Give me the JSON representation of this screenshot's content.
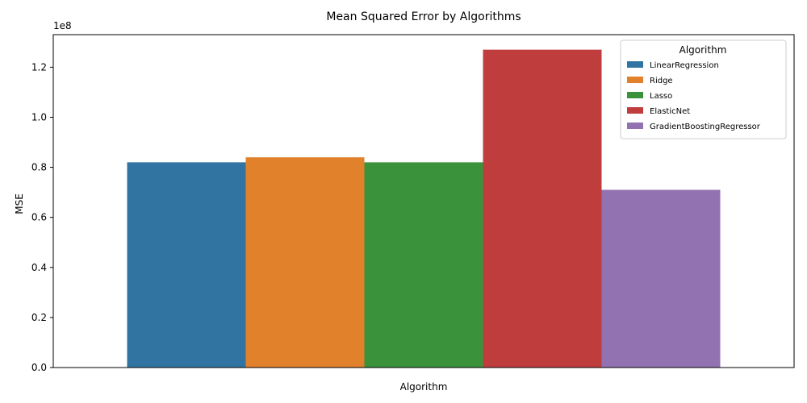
{
  "chart_data": {
    "type": "bar",
    "title": "Mean Squared Error by Algorithms",
    "xlabel": "Algorithm",
    "ylabel": "MSE",
    "y_offset_label": "1e8",
    "y_scale": 100000000,
    "ylim": [
      0,
      133000000
    ],
    "yticks": [
      0,
      20000000,
      40000000,
      60000000,
      80000000,
      100000000,
      120000000
    ],
    "ytick_labels": [
      "0.0",
      "0.2",
      "0.4",
      "0.6",
      "0.8",
      "1.0",
      "1.2"
    ],
    "grid": false,
    "legend": {
      "title": "Algorithm",
      "placement": "top-right"
    },
    "series": [
      {
        "name": "LinearRegression",
        "value": 82000000,
        "color": "#3274a1"
      },
      {
        "name": "Ridge",
        "value": 84000000,
        "color": "#e1812c"
      },
      {
        "name": "Lasso",
        "value": 82000000,
        "color": "#3a923a"
      },
      {
        "name": "ElasticNet",
        "value": 127000000,
        "color": "#c03d3e"
      },
      {
        "name": "GradientBoostingRegressor",
        "value": 71000000,
        "color": "#9372b2"
      }
    ]
  }
}
